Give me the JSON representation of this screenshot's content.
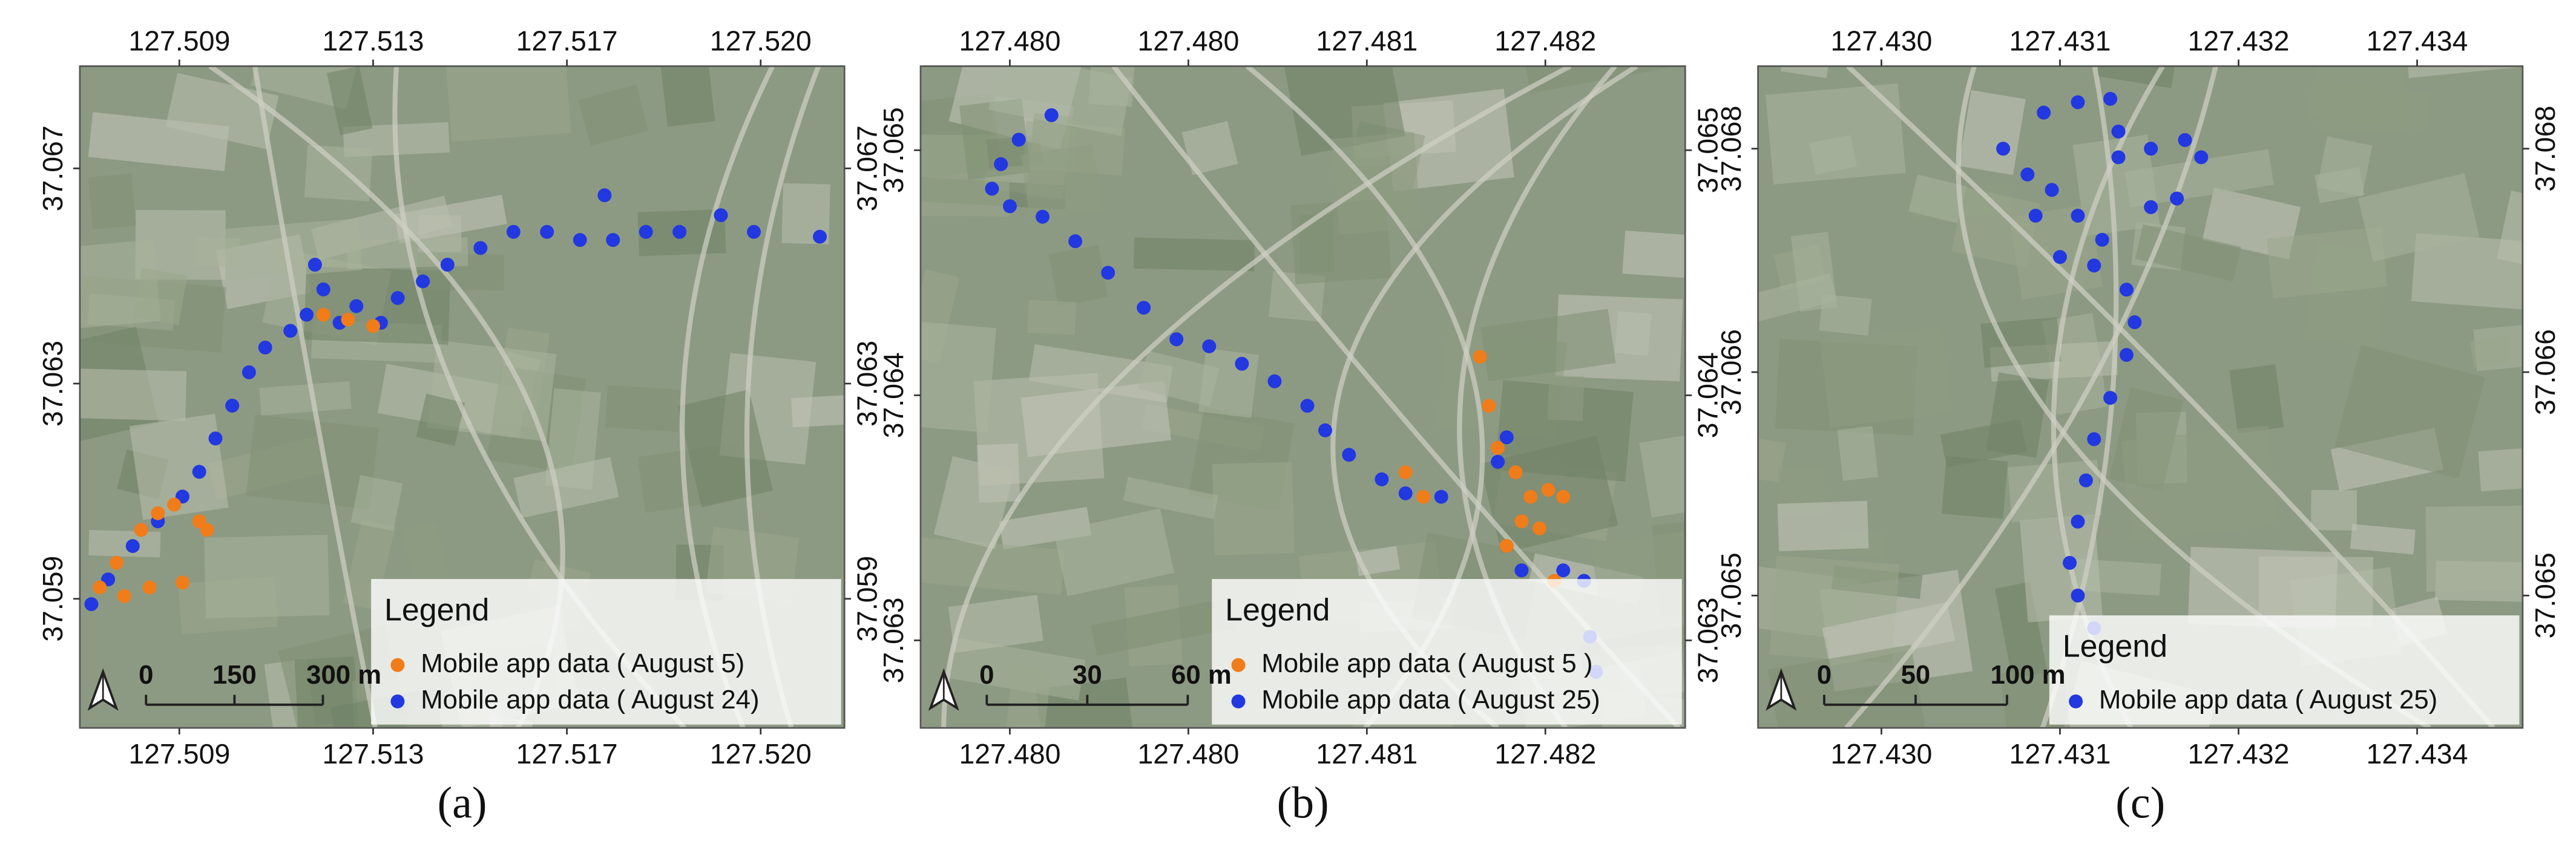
{
  "chart_data": [
    {
      "type": "scatter",
      "label": "(a)",
      "legend_title": "Legend",
      "xlim": [
        127.5073,
        127.5219
      ],
      "ylim": [
        37.0564,
        37.0687
      ],
      "xticks": [
        {
          "value": 127.5092,
          "label": "127.509"
        },
        {
          "value": 127.5129,
          "label": "127.513"
        },
        {
          "value": 127.5166,
          "label": "127.517"
        },
        {
          "value": 127.5203,
          "label": "127.520"
        }
      ],
      "yticks": [
        {
          "value": 37.0588,
          "label": "37.059"
        },
        {
          "value": 37.0628,
          "label": "37.063"
        },
        {
          "value": 37.0668,
          "label": "37.067"
        }
      ],
      "scale_bar": [
        0,
        150,
        {
          "value": 300,
          "label": "300 m"
        }
      ],
      "series": [
        {
          "name": "Mobile app data ( August 5)",
          "color": "#f07c1a",
          "x": [
            127.50768,
            127.508,
            127.50847,
            127.50879,
            127.5091,
            127.50958,
            127.50973,
            127.50815,
            127.50863,
            127.50926,
            127.51195,
            127.51242,
            127.5129
          ],
          "y": [
            37.05901,
            37.05947,
            37.06008,
            37.06039,
            37.06055,
            37.06024,
            37.06008,
            37.05885,
            37.05901,
            37.0591,
            37.06408,
            37.06399,
            37.06387
          ]
        },
        {
          "name": "Mobile app data ( August 24)",
          "color": "#2238e0",
          "x": [
            127.50752,
            127.50784,
            127.50831,
            127.50879,
            127.50926,
            127.50958,
            127.50989,
            127.51021,
            127.51053,
            127.51084,
            127.51132,
            127.51163,
            127.51179,
            127.51195,
            127.51226,
            127.51258,
            127.51305,
            127.51337,
            127.51385,
            127.51432,
            127.51495,
            127.51558,
            127.51622,
            127.51685,
            127.51732,
            127.51748,
            127.51811,
            127.51875,
            127.51954,
            127.52017,
            127.52143
          ],
          "y": [
            37.0587,
            37.05916,
            37.05978,
            37.06024,
            37.0607,
            37.06116,
            37.06178,
            37.06239,
            37.06301,
            37.06347,
            37.06378,
            37.06408,
            37.06501,
            37.06455,
            37.06393,
            37.06424,
            37.06393,
            37.06439,
            37.0647,
            37.06501,
            37.06532,
            37.06562,
            37.06562,
            37.06547,
            37.0663,
            37.06547,
            37.06562,
            37.06562,
            37.06593,
            37.06562,
            37.06553
          ]
        }
      ]
    },
    {
      "type": "scatter",
      "label": "(b)",
      "legend_title": "Legend",
      "xlim": [
        127.4795,
        127.48207
      ],
      "ylim": [
        37.06305,
        37.06494
      ],
      "xticks": [
        {
          "value": 127.4798,
          "label": "127.480"
        },
        {
          "value": 127.4804,
          "label": "127.480"
        },
        {
          "value": 127.481,
          "label": "127.481"
        },
        {
          "value": 127.4816,
          "label": "127.482"
        }
      ],
      "yticks": [
        {
          "value": 37.0633,
          "label": "37.063"
        },
        {
          "value": 37.064,
          "label": "37.064"
        },
        {
          "value": 37.0647,
          "label": "37.065"
        }
      ],
      "scale_bar": [
        0,
        30,
        {
          "value": 60,
          "label": "60 m"
        }
      ],
      "series": [
        {
          "name": "Mobile app data ( August 5 )",
          "color": "#f07c1a",
          "x": [
            127.48138,
            127.48141,
            127.48144,
            127.4815,
            127.48155,
            127.48161,
            127.48166,
            127.48152,
            127.48158,
            127.48147,
            127.48113,
            127.48119,
            127.48163
          ],
          "y": [
            37.06411,
            37.06397,
            37.06385,
            37.06378,
            37.06371,
            37.06373,
            37.06371,
            37.06364,
            37.06362,
            37.06357,
            37.06378,
            37.06371,
            37.06347
          ]
        },
        {
          "name": "Mobile app data ( August 25)",
          "color": "#2238e0",
          "x": [
            127.47994,
            127.47983,
            127.47977,
            127.47974,
            127.4798,
            127.47991,
            127.48002,
            127.48013,
            127.48025,
            127.48036,
            127.48047,
            127.48058,
            127.48069,
            127.4808,
            127.48086,
            127.48094,
            127.48105,
            127.48113,
            127.48125,
            127.48144,
            127.48147,
            127.48152,
            127.48166,
            127.48173,
            127.48175,
            127.48177
          ],
          "y": [
            37.0648,
            37.06473,
            37.06466,
            37.06459,
            37.06454,
            37.06451,
            37.06444,
            37.06435,
            37.06425,
            37.06416,
            37.06414,
            37.06409,
            37.06404,
            37.06397,
            37.0639,
            37.06383,
            37.06376,
            37.06372,
            37.06371,
            37.06381,
            37.06388,
            37.0635,
            37.0635,
            37.06347,
            37.06331,
            37.06321
          ]
        }
      ]
    },
    {
      "type": "scatter",
      "label": "(c)",
      "legend_title": "Legend",
      "xlim": [
        127.42949,
        127.4342
      ],
      "ylim": [
        37.06438,
        37.06823
      ],
      "xticks": [
        {
          "value": 127.43025,
          "label": "127.430"
        },
        {
          "value": 127.43135,
          "label": "127.431"
        },
        {
          "value": 127.43245,
          "label": "127.432"
        },
        {
          "value": 127.43355,
          "label": "127.434"
        }
      ],
      "yticks": [
        {
          "value": 37.06515,
          "label": "37.065"
        },
        {
          "value": 37.06645,
          "label": "37.066"
        },
        {
          "value": 37.06775,
          "label": "37.068"
        }
      ],
      "scale_bar": [
        0,
        50,
        {
          "value": 100,
          "label": "100 m"
        }
      ],
      "series": [
        {
          "name": "Mobile app data ( August 25)",
          "color": "#2238e0",
          "x": [
            127.43125,
            127.43146,
            127.43166,
            127.43171,
            127.43171,
            127.43191,
            127.43212,
            127.43222,
            127.43207,
            127.43191,
            127.43161,
            127.43146,
            127.4313,
            127.43115,
            127.431,
            127.4312,
            127.43135,
            127.43156,
            127.43176,
            127.43181,
            127.43176,
            127.43166,
            127.43156,
            127.43151,
            127.43146,
            127.43141,
            127.43146,
            127.43156
          ],
          "y": [
            37.06796,
            37.06802,
            37.06804,
            37.06785,
            37.0677,
            37.06775,
            37.0678,
            37.0677,
            37.06746,
            37.06741,
            37.06722,
            37.06736,
            37.06751,
            37.0676,
            37.06775,
            37.06736,
            37.06712,
            37.06707,
            37.06693,
            37.06674,
            37.06655,
            37.0663,
            37.06606,
            37.06582,
            37.06558,
            37.06534,
            37.06515,
            37.06496
          ]
        }
      ]
    }
  ]
}
